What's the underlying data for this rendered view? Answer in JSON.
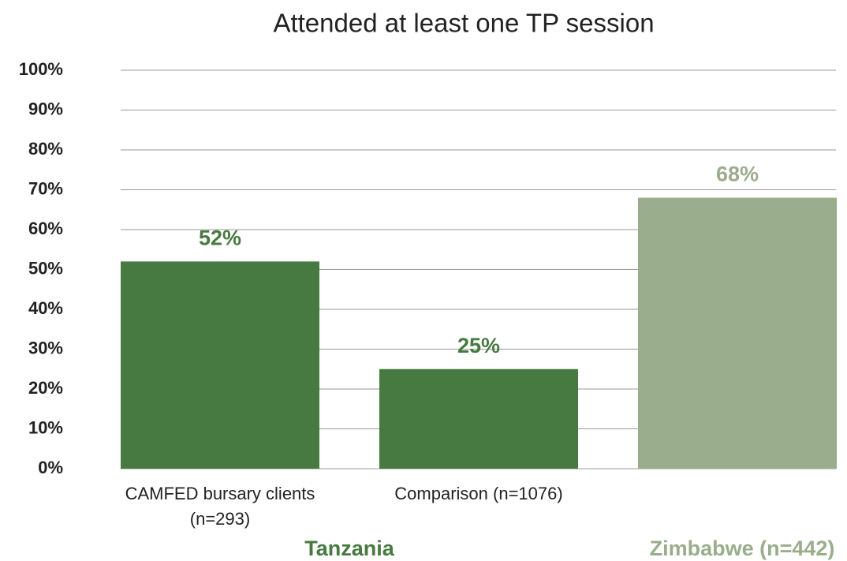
{
  "chart_data": {
    "type": "bar",
    "title": "Attended at least one TP session",
    "categories": [
      "CAMFED bursary clients (n=293)",
      "Comparison (n=1076)",
      null
    ],
    "values": [
      52,
      25,
      68
    ],
    "value_labels": [
      "52%",
      "25%",
      "68%"
    ],
    "colors": [
      "#477a41",
      "#477a41",
      "#9aad8c"
    ],
    "groups": [
      {
        "label": "Tanzania",
        "color": "#477a41"
      },
      {
        "label": "Zimbabwe (n=442)",
        "color": "#9aad8c"
      }
    ],
    "ylim": [
      0,
      100
    ],
    "yticks": [
      {
        "value": 0,
        "label": "0%"
      },
      {
        "value": 10,
        "label": "10%"
      },
      {
        "value": 20,
        "label": "20%"
      },
      {
        "value": 30,
        "label": "30%"
      },
      {
        "value": 40,
        "label": "40%"
      },
      {
        "value": 50,
        "label": "50%"
      },
      {
        "value": 60,
        "label": "60%"
      },
      {
        "value": 70,
        "label": "70%"
      },
      {
        "value": 80,
        "label": "80%"
      },
      {
        "value": 90,
        "label": "90%"
      },
      {
        "value": 100,
        "label": "100%"
      }
    ],
    "grid": true
  }
}
